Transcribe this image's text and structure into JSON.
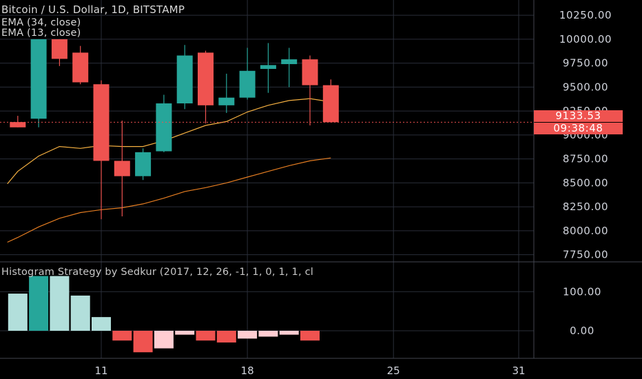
{
  "header": {
    "title": "Bitcoin / U.S. Dollar, 1D, BITSTAMP",
    "ema1": "EMA (34, close)",
    "ema2": "EMA (13, close)",
    "indicator": "Histogram Strategy by Sedkur (2017, 12, 26, -1, 1, 0, 1, 1, cl"
  },
  "last_price": {
    "value": "9133.53",
    "countdown": "09:38:48"
  },
  "colors": {
    "bull": "#26a69a",
    "bear": "#ef5350",
    "ema_fast": "#f5b041",
    "ema_slow": "#e67e22",
    "hist_strong_pos": "#26a69a",
    "hist_weak_pos": "#b2dfdb",
    "hist_strong_neg": "#ef5350",
    "hist_weak_neg": "#ffcdd2"
  },
  "chart_data": [
    {
      "type": "candlestick",
      "title": "Bitcoin / U.S. Dollar, 1D, BITSTAMP",
      "ylim": [
        7650,
        10330
      ],
      "y_ticks": [
        "10250.00",
        "10000.00",
        "9750.00",
        "9500.00",
        "9250.00",
        "9000.00",
        "8750.00",
        "8500.00",
        "8250.00",
        "8000.00",
        "7750.00"
      ],
      "x_ticks": [
        {
          "label": "11",
          "day": 11
        },
        {
          "label": "18",
          "day": 18
        },
        {
          "label": "25",
          "day": 25
        },
        {
          "label": "31",
          "day": 31
        }
      ],
      "x_range": [
        6.5,
        32.5
      ],
      "candles": [
        {
          "day": 7,
          "o": 9135,
          "h": 9200,
          "l": 9080,
          "c": 9080
        },
        {
          "day": 8,
          "o": 9170,
          "h": 10000,
          "l": 9080,
          "c": 10000
        },
        {
          "day": 9,
          "o": 10000,
          "h": 10000,
          "l": 9720,
          "c": 9795
        },
        {
          "day": 10,
          "o": 9860,
          "h": 9930,
          "l": 9530,
          "c": 9550
        },
        {
          "day": 11,
          "o": 9530,
          "h": 9570,
          "l": 8120,
          "c": 8730
        },
        {
          "day": 12,
          "o": 8730,
          "h": 9150,
          "l": 8150,
          "c": 8570
        },
        {
          "day": 13,
          "o": 8570,
          "h": 8860,
          "l": 8530,
          "c": 8820
        },
        {
          "day": 14,
          "o": 8830,
          "h": 9420,
          "l": 8820,
          "c": 9330
        },
        {
          "day": 15,
          "o": 9330,
          "h": 9940,
          "l": 9270,
          "c": 9830
        },
        {
          "day": 16,
          "o": 9860,
          "h": 9880,
          "l": 9120,
          "c": 9310
        },
        {
          "day": 17,
          "o": 9310,
          "h": 9640,
          "l": 9230,
          "c": 9390
        },
        {
          "day": 18,
          "o": 9390,
          "h": 9910,
          "l": 9370,
          "c": 9670
        },
        {
          "day": 19,
          "o": 9690,
          "h": 9960,
          "l": 9440,
          "c": 9730
        },
        {
          "day": 20,
          "o": 9740,
          "h": 9910,
          "l": 9500,
          "c": 9790
        },
        {
          "day": 21,
          "o": 9790,
          "h": 9830,
          "l": 9100,
          "c": 9520
        },
        {
          "day": 22,
          "o": 9520,
          "h": 9580,
          "l": 9130,
          "c": 9133.53
        }
      ],
      "series": [
        {
          "name": "EMA (13, close)",
          "color": "#f5b041",
          "x": [
            6.5,
            7,
            8,
            9,
            10,
            11,
            12,
            13,
            14,
            15,
            16,
            17,
            18,
            19,
            20,
            21,
            22
          ],
          "y": [
            8490,
            8620,
            8780,
            8880,
            8860,
            8890,
            8880,
            8880,
            8940,
            9020,
            9100,
            9140,
            9240,
            9310,
            9360,
            9380,
            9345
          ]
        },
        {
          "name": "EMA (34, close)",
          "color": "#e67e22",
          "x": [
            6.5,
            7,
            8,
            9,
            10,
            11,
            12,
            13,
            14,
            15,
            16,
            17,
            18,
            19,
            20,
            21,
            22
          ],
          "y": [
            7880,
            7930,
            8040,
            8130,
            8190,
            8220,
            8240,
            8280,
            8340,
            8410,
            8450,
            8500,
            8560,
            8620,
            8680,
            8730,
            8760
          ]
        }
      ]
    },
    {
      "type": "bar",
      "title": "Histogram Strategy by Sedkur (2017, 12, 26, -1, 1, 0, 1, 1, cl",
      "ylim": [
        -90,
        170
      ],
      "y_ticks": [
        "100.00",
        "0.00"
      ],
      "x": [
        7,
        8,
        9,
        10,
        11,
        12,
        13,
        14,
        15,
        16,
        17,
        18,
        19,
        20,
        21
      ],
      "values": [
        95,
        140,
        140,
        90,
        35,
        -25,
        -55,
        -45,
        -10,
        -25,
        -30,
        -20,
        -15,
        -10,
        -25
      ],
      "strength": [
        "weak",
        "strong",
        "weak",
        "weak",
        "weak",
        "strong",
        "strong",
        "weak",
        "weak",
        "strong",
        "strong",
        "weak",
        "weak",
        "weak",
        "strong"
      ]
    }
  ]
}
